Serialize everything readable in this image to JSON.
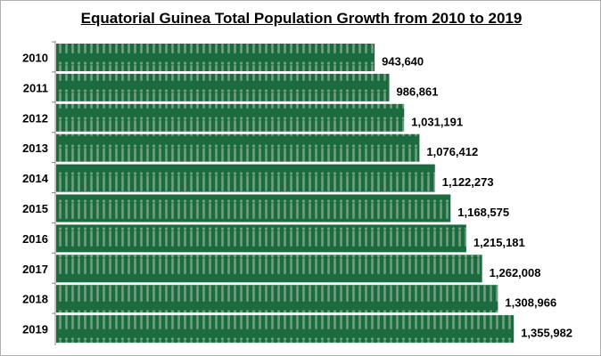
{
  "chart_data": {
    "type": "bar",
    "orientation": "horizontal",
    "title": "Equatorial Guinea Total Population Growth from 2010 to 2019",
    "xlabel": "",
    "ylabel": "",
    "categories": [
      "2010",
      "2011",
      "2012",
      "2013",
      "2014",
      "2015",
      "2016",
      "2017",
      "2018",
      "2019"
    ],
    "values": [
      943640,
      986861,
      1031191,
      1076412,
      1122273,
      1168575,
      1215181,
      1262008,
      1308966,
      1355982
    ],
    "data_labels": [
      "943,640",
      "986,861",
      "1,031,191",
      "1,076,412",
      "1,122,273",
      "1,168,575",
      "1,215,181",
      "1,262,008",
      "1,308,966",
      "1,355,982"
    ],
    "xlim": [
      0,
      1580000
    ],
    "grid": false,
    "legend": "none",
    "colors": {
      "bar": "#1b6b3e",
      "figure_pattern": "#6f9f80"
    }
  }
}
